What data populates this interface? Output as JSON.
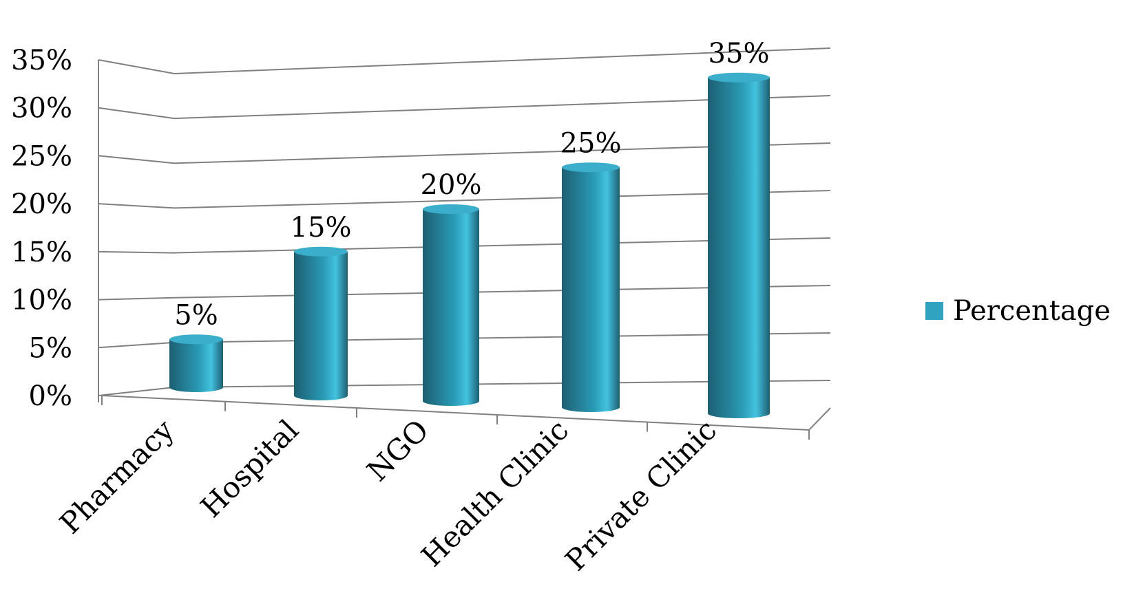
{
  "chart_data": {
    "type": "bar",
    "style": "3d-cylinder",
    "categories": [
      "Pharmacy",
      "Hospital",
      "NGO",
      "Health Clinic",
      "Private Clinic"
    ],
    "series": [
      {
        "name": "Percentage",
        "values": [
          5,
          15,
          20,
          25,
          35
        ]
      }
    ],
    "data_labels": [
      "5%",
      "15%",
      "20%",
      "25%",
      "35%"
    ],
    "y_ticks": [
      "0%",
      "5%",
      "10%",
      "15%",
      "20%",
      "25%",
      "30%",
      "35%"
    ],
    "ylim": [
      0,
      35
    ],
    "grid": true,
    "legend": {
      "position": "right",
      "label": "Percentage"
    },
    "colors": {
      "bar_dark": "#1c5f72",
      "bar_mid": "#2a9ab5",
      "bar_light": "#43c2df",
      "bar_top": "#3aaecb",
      "grid": "#808080",
      "legend_swatch": "#2fa3c0"
    }
  }
}
